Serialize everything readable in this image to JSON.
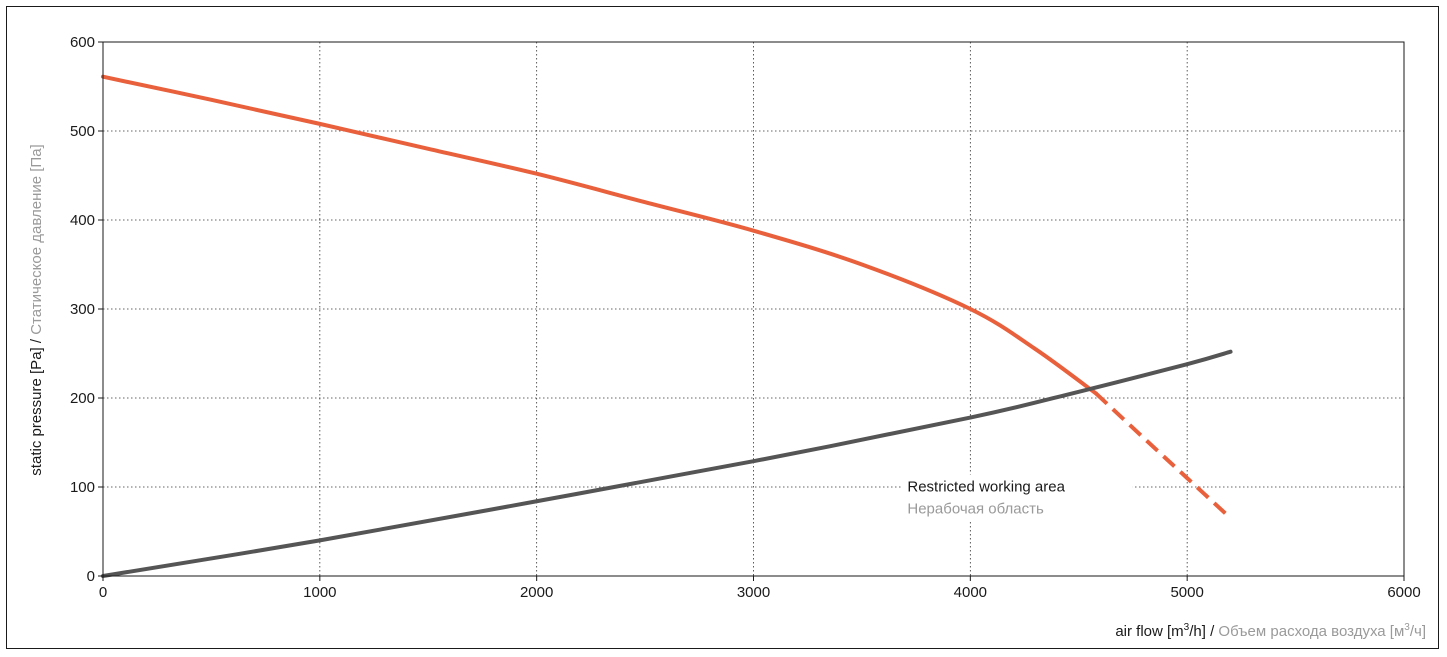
{
  "chart_data": {
    "type": "line",
    "xlabel": {
      "en_prefix": "air flow [m",
      "en_sup": "3",
      "en_suffix": "/h]",
      "sep": " / ",
      "ru_prefix": "Объем расхода воздуха [м",
      "ru_sup": "3",
      "ru_suffix": "/ч]"
    },
    "ylabel": {
      "en": "static pressure [Pa]",
      "sep": " / ",
      "ru": "Статическое давление [Па]"
    },
    "xlim": [
      0,
      6000
    ],
    "ylim": [
      0,
      600
    ],
    "xticks": [
      0,
      1000,
      2000,
      3000,
      4000,
      5000,
      6000
    ],
    "yticks": [
      0,
      100,
      200,
      300,
      400,
      500,
      600
    ],
    "grid": true,
    "annotation": {
      "en": "Restricted working area",
      "ru": "Нерабочая область",
      "x": 4300,
      "y": 95
    },
    "series": [
      {
        "color": "#e8603c",
        "style": "solid",
        "x": [
          0,
          500,
          1000,
          1500,
          2000,
          2500,
          3000,
          3500,
          4000,
          4300,
          4580
        ],
        "y": [
          561,
          535,
          508,
          480,
          452,
          420,
          388,
          350,
          300,
          255,
          205
        ]
      },
      {
        "color": "#e8603c",
        "style": "dashed",
        "x": [
          4580,
          4800,
          5000,
          5200
        ],
        "y": [
          205,
          155,
          110,
          65
        ]
      },
      {
        "color": "#555555",
        "style": "solid",
        "x": [
          0,
          1000,
          2000,
          3000,
          4000,
          4500,
          5000,
          5200
        ],
        "y": [
          0,
          40,
          84,
          129,
          178,
          207,
          238,
          252
        ]
      }
    ]
  }
}
